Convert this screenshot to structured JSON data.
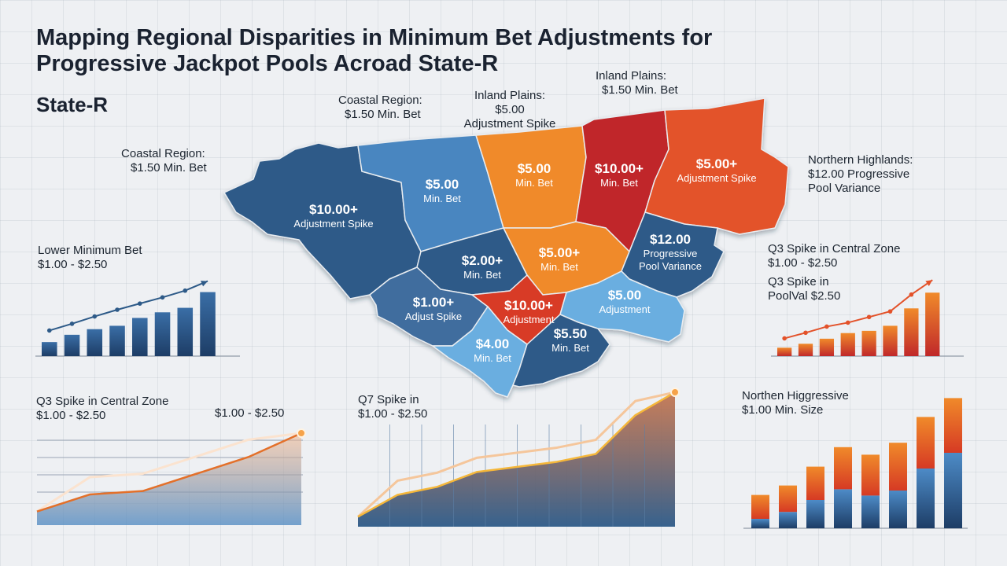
{
  "title": "Mapping Regional Disparities in Minimum Bet Adjustments for Progressive Jackpot Pools Acroad State-R",
  "subtitle": "State-R",
  "colors": {
    "dark_blue": "#2d5a88",
    "mid_blue": "#4a86c0",
    "light_blue": "#6aaee0",
    "orange": "#f08a2a",
    "red_orange": "#e3522a",
    "red": "#c0282a"
  },
  "callouts": {
    "coastal_top": {
      "line1": "Coastal Region:",
      "line2": "$1.50 Min. Bet"
    },
    "inland_center": {
      "line1": "Inland Plains:",
      "line2": "$5.00",
      "line3": "Adjustment Spike"
    },
    "inland_right": {
      "line1": "Inland Plains:",
      "line2": "$1.50 Min. Bet"
    },
    "coastal_left": {
      "line1": "Coastal Region:",
      "line2": "$1.50 Min. Bet"
    },
    "northern": {
      "line1": "Northern Highlands:",
      "line2": "$12.00 Progressive",
      "line3": "Pool Variance"
    }
  },
  "map_regions": [
    {
      "value": "$10.00+",
      "label": "Adjustment Spike"
    },
    {
      "value": "$5.00",
      "label": "Min. Bet"
    },
    {
      "value": "$5.00",
      "label": "Min. Bet"
    },
    {
      "value": "$10.00+",
      "label": "Min. Bet"
    },
    {
      "value": "$5.00+",
      "label": "Adjustment Spike"
    },
    {
      "value": "$2.00+",
      "label": "Min. Bet"
    },
    {
      "value": "$5.00+",
      "label": "Min. Bet"
    },
    {
      "value": "$12.00",
      "label": "Progressive",
      "label2": "Pool Variance"
    },
    {
      "value": "$1.00+",
      "label": "Adjust Spike"
    },
    {
      "value": "$10.00+",
      "label": "Adjustment"
    },
    {
      "value": "$5.00",
      "label": "Adjustment"
    },
    {
      "value": "$4.00",
      "label": "Min. Bet"
    },
    {
      "value": "$5.50",
      "label": "Min. Bet"
    }
  ],
  "chart_labels": {
    "c1": {
      "line1": "Lower Minimum Bet",
      "line2": "$1.00 - $2.50"
    },
    "c2": {
      "line1": "Q3 Spike in Central Zone",
      "line2": "$1.00 - $2.50",
      "line3": "Q3 Spike in",
      "line4": "PoolVal $2.50"
    },
    "c3": {
      "line1": "Q3 Spike in Central Zone",
      "line2": "$1.00 - $2.50",
      "end_label": "$1.00 - $2.50"
    },
    "c4": {
      "line1": "Q7 Spike in",
      "line2": "$1.00 - $2.50"
    },
    "c5": {
      "line1": "Northen Higgressive",
      "line2": "$1.00 Min. Size"
    }
  },
  "chart_data": [
    {
      "type": "bar",
      "color": "#2d5a88",
      "values": [
        2.5,
        3.8,
        4.8,
        5.4,
        6.8,
        7.8,
        8.6,
        11.4
      ],
      "trend": [
        4.0,
        5.2,
        6.5,
        7.7,
        8.8,
        9.9,
        11.1,
        12.8
      ],
      "ylim": [
        0,
        14
      ]
    },
    {
      "type": "bar",
      "color": "#e3522a",
      "values": [
        1.5,
        2.2,
        3.1,
        4.1,
        4.5,
        5.4,
        8.5,
        11.3
      ],
      "trend": [
        2.6,
        3.6,
        4.7,
        5.4,
        6.4,
        7.4,
        10.4,
        13.0
      ],
      "ylim": [
        0,
        14
      ]
    },
    {
      "type": "area",
      "color": "#e3702a",
      "values": [
        2,
        4.5,
        5,
        7.5,
        10,
        13.5
      ],
      "ylim": [
        0,
        15
      ]
    },
    {
      "type": "area",
      "color": "#3f6d9e",
      "values": [
        1,
        3.2,
        4,
        5.5,
        6,
        6.5,
        7.3,
        11.2,
        13.5
      ],
      "ylim": [
        0,
        15
      ]
    },
    {
      "type": "bar",
      "color": "#2d5a88",
      "stacked": true,
      "series": [
        {
          "name": "base",
          "values": [
            1.5,
            2.6,
            4.5,
            6.2,
            5.2,
            6,
            9.5,
            12
          ]
        },
        {
          "name": "top",
          "values": [
            3.8,
            4.2,
            5.3,
            6.7,
            6.5,
            7.6,
            8.2,
            8.7
          ]
        }
      ],
      "ylim": [
        0,
        22
      ]
    }
  ]
}
